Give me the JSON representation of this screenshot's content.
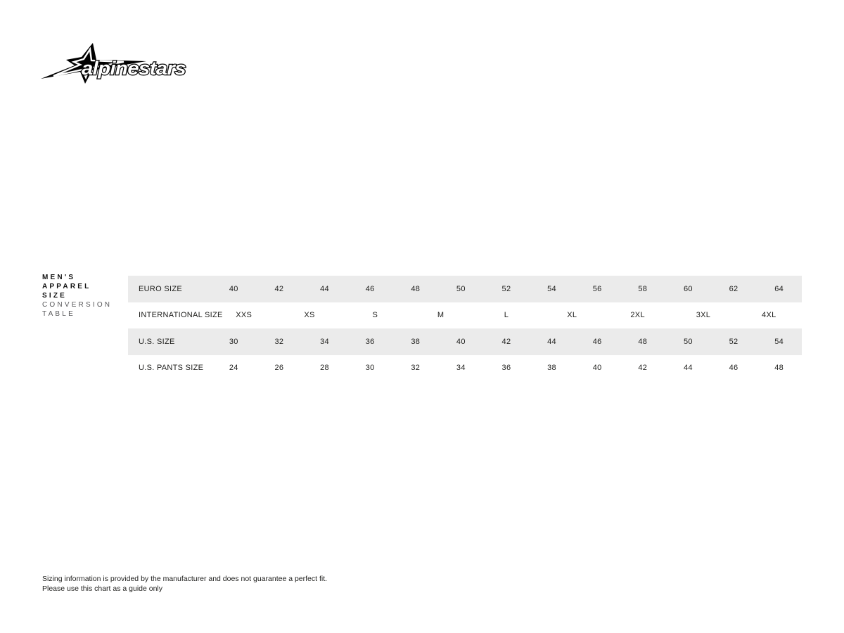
{
  "logo": {
    "brand_text": "alpinestars"
  },
  "sidebar_title": {
    "lines_bold": [
      "MEN'S",
      "APPAREL",
      "SIZE"
    ],
    "lines_light": [
      "CONVERSION",
      "TABLE"
    ]
  },
  "chart_data": {
    "type": "table",
    "title": "MEN'S APPAREL SIZE CONVERSION TABLE",
    "rows": [
      {
        "label": "EURO SIZE",
        "values": [
          "40",
          "42",
          "44",
          "46",
          "48",
          "50",
          "52",
          "54",
          "56",
          "58",
          "60",
          "62",
          "64"
        ]
      },
      {
        "label": "INTERNATIONAL SIZE",
        "values": [
          "XXS",
          "XS",
          "S",
          "M",
          "L",
          "XL",
          "2XL",
          "3XL",
          "4XL"
        ]
      },
      {
        "label": "U.S. SIZE",
        "values": [
          "30",
          "32",
          "34",
          "36",
          "38",
          "40",
          "42",
          "44",
          "46",
          "48",
          "50",
          "52",
          "54"
        ]
      },
      {
        "label": "U.S. PANTS SIZE",
        "values": [
          "24",
          "26",
          "28",
          "30",
          "32",
          "34",
          "36",
          "38",
          "40",
          "42",
          "44",
          "46",
          "48"
        ]
      }
    ]
  },
  "footer": {
    "line1": "Sizing information is provided by the manufacturer and does not guarantee a perfect fit.",
    "line2": "Please use this chart as a guide only"
  },
  "colors": {
    "row_shaded": "#ebebeb",
    "text": "#1d1d1b",
    "title_light": "#58585a"
  }
}
